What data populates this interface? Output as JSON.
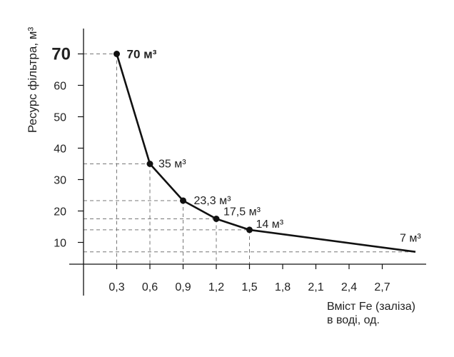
{
  "chart_data": {
    "type": "line",
    "title": "",
    "ylabel": "Ресурс фільтра, м³",
    "xlabel_line1": "Вміст Fe (заліза)",
    "xlabel_line2": "в воді, од.",
    "x_ticks": [
      "0,3",
      "0,6",
      "0,9",
      "1,2",
      "1,5",
      "1,8",
      "2,1",
      "2,4",
      "2,7"
    ],
    "x_tick_values": [
      0.3,
      0.6,
      0.9,
      1.2,
      1.5,
      1.8,
      2.1,
      2.4,
      2.7
    ],
    "y_ticks": [
      "10",
      "20",
      "30",
      "40",
      "50",
      "60",
      "70"
    ],
    "y_tick_values": [
      10,
      20,
      30,
      40,
      50,
      60,
      70
    ],
    "y_bold_tick": "70",
    "xlim": [
      0,
      3.0
    ],
    "ylim": [
      0,
      80
    ],
    "grid": false,
    "series": [
      {
        "x": [
          0.3,
          0.6,
          0.9,
          1.2,
          1.5,
          3.0
        ],
        "y": [
          70,
          35,
          23.3,
          17.5,
          14,
          7
        ],
        "color": "#111111"
      }
    ],
    "points": [
      {
        "x": 0.3,
        "y": 70,
        "label": "70 м³",
        "marker": true,
        "bold": true
      },
      {
        "x": 0.6,
        "y": 35,
        "label": "35 м³",
        "marker": true,
        "bold": false
      },
      {
        "x": 0.9,
        "y": 23.3,
        "label": "23,3 м³",
        "marker": true,
        "bold": false
      },
      {
        "x": 1.2,
        "y": 17.5,
        "label": "17,5 м³",
        "marker": true,
        "bold": false
      },
      {
        "x": 1.5,
        "y": 14,
        "label": "14 м³",
        "marker": true,
        "bold": false
      },
      {
        "x": 3.0,
        "y": 7,
        "label": "7 м³",
        "marker": false,
        "bold": false
      }
    ],
    "colors": {
      "line": "#111111",
      "axis": "#111111",
      "guide": "#777777",
      "text": "#222222"
    }
  }
}
